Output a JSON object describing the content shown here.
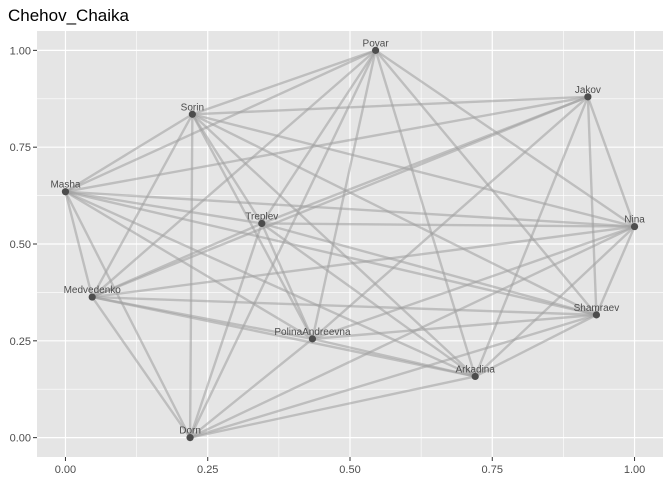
{
  "chart_data": {
    "type": "scatter",
    "title": "Chehov_Chaika",
    "xlabel": "",
    "ylabel": "",
    "xlim": [
      -0.05,
      1.05
    ],
    "ylim": [
      -0.05,
      1.05
    ],
    "x_ticks": [
      0.0,
      0.25,
      0.5,
      0.75,
      1.0
    ],
    "x_tick_labels": [
      "0.00",
      "0.25",
      "0.50",
      "0.75",
      "1.00"
    ],
    "y_ticks": [
      0.0,
      0.25,
      0.5,
      0.75,
      1.0
    ],
    "y_tick_labels": [
      "0.00",
      "0.25",
      "0.50",
      "0.75",
      "1.00"
    ],
    "grid": true,
    "colors": {
      "panel": "#e5e5e5",
      "grid_major": "#ffffff",
      "edge": "#9e9e9e",
      "node": "#4d4d4d",
      "label": "#4d4d4d"
    },
    "nodes": [
      {
        "name": "Povar",
        "x": 0.545,
        "y": 1.0
      },
      {
        "name": "Jakov",
        "x": 0.918,
        "y": 0.88
      },
      {
        "name": "Sorin",
        "x": 0.223,
        "y": 0.835
      },
      {
        "name": "Masha",
        "x": 0.0,
        "y": 0.635
      },
      {
        "name": "Nina",
        "x": 1.0,
        "y": 0.545
      },
      {
        "name": "Treplev",
        "x": 0.345,
        "y": 0.553
      },
      {
        "name": "Medvedenko",
        "x": 0.047,
        "y": 0.363
      },
      {
        "name": "Shamraev",
        "x": 0.933,
        "y": 0.317
      },
      {
        "name": "PolinaAndreevna",
        "x": 0.434,
        "y": 0.255
      },
      {
        "name": "Arkadina",
        "x": 0.72,
        "y": 0.158
      },
      {
        "name": "Dorn",
        "x": 0.219,
        "y": 0.0
      }
    ],
    "edges": [
      [
        "Povar",
        "Sorin"
      ],
      [
        "Povar",
        "Medvedenko"
      ],
      [
        "Povar",
        "Treplev"
      ],
      [
        "Povar",
        "Nina"
      ],
      [
        "Povar",
        "Shamraev"
      ],
      [
        "Povar",
        "PolinaAndreevna"
      ],
      [
        "Povar",
        "Arkadina"
      ],
      [
        "Povar",
        "Dorn"
      ],
      [
        "Jakov",
        "Sorin"
      ],
      [
        "Jakov",
        "Masha"
      ],
      [
        "Jakov",
        "Treplev"
      ],
      [
        "Jakov",
        "Medvedenko"
      ],
      [
        "Jakov",
        "Nina"
      ],
      [
        "Jakov",
        "Shamraev"
      ],
      [
        "Jakov",
        "PolinaAndreevna"
      ],
      [
        "Jakov",
        "Arkadina"
      ],
      [
        "Sorin",
        "Masha"
      ],
      [
        "Sorin",
        "Nina"
      ],
      [
        "Sorin",
        "Treplev"
      ],
      [
        "Sorin",
        "Medvedenko"
      ],
      [
        "Sorin",
        "Shamraev"
      ],
      [
        "Sorin",
        "PolinaAndreevna"
      ],
      [
        "Sorin",
        "Arkadina"
      ],
      [
        "Sorin",
        "Dorn"
      ],
      [
        "Masha",
        "Treplev"
      ],
      [
        "Masha",
        "Nina"
      ],
      [
        "Masha",
        "Medvedenko"
      ],
      [
        "Masha",
        "Shamraev"
      ],
      [
        "Masha",
        "PolinaAndreevna"
      ],
      [
        "Masha",
        "Arkadina"
      ],
      [
        "Masha",
        "Dorn"
      ],
      [
        "Masha",
        "Povar"
      ],
      [
        "Treplev",
        "Nina"
      ],
      [
        "Treplev",
        "Medvedenko"
      ],
      [
        "Treplev",
        "Shamraev"
      ],
      [
        "Treplev",
        "PolinaAndreevna"
      ],
      [
        "Treplev",
        "Arkadina"
      ],
      [
        "Treplev",
        "Dorn"
      ],
      [
        "Medvedenko",
        "Nina"
      ],
      [
        "Medvedenko",
        "Shamraev"
      ],
      [
        "Medvedenko",
        "PolinaAndreevna"
      ],
      [
        "Medvedenko",
        "Arkadina"
      ],
      [
        "Medvedenko",
        "Dorn"
      ],
      [
        "Nina",
        "Shamraev"
      ],
      [
        "Nina",
        "PolinaAndreevna"
      ],
      [
        "Nina",
        "Arkadina"
      ],
      [
        "Nina",
        "Dorn"
      ],
      [
        "Shamraev",
        "PolinaAndreevna"
      ],
      [
        "Shamraev",
        "Arkadina"
      ],
      [
        "Shamraev",
        "Dorn"
      ],
      [
        "PolinaAndreevna",
        "Arkadina"
      ],
      [
        "PolinaAndreevna",
        "Dorn"
      ],
      [
        "Arkadina",
        "Dorn"
      ]
    ]
  }
}
